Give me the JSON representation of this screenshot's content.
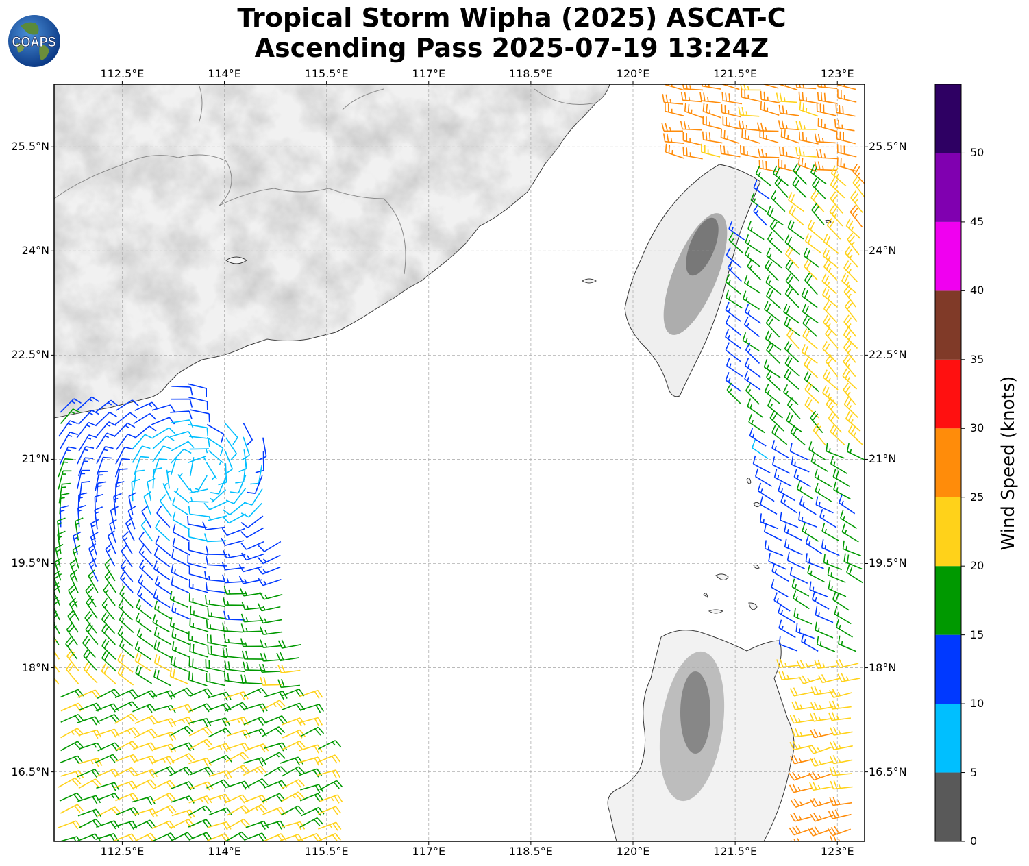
{
  "title": {
    "line1": "Tropical Storm Wipha (2025) ASCAT-C",
    "line2": "Ascending Pass 2025-07-19 13:24Z"
  },
  "logo": {
    "text": "COAPS",
    "icon": "coaps-globe-logo"
  },
  "map": {
    "lon_range": [
      111.5,
      123.4
    ],
    "lat_range": [
      15.5,
      26.4
    ],
    "lon_ticks": [
      {
        "value": 112.5,
        "label": "112.5°E"
      },
      {
        "value": 114.0,
        "label": "114°E"
      },
      {
        "value": 115.5,
        "label": "115.5°E"
      },
      {
        "value": 117.0,
        "label": "117°E"
      },
      {
        "value": 118.5,
        "label": "118.5°E"
      },
      {
        "value": 120.0,
        "label": "120°E"
      },
      {
        "value": 121.5,
        "label": "121.5°E"
      },
      {
        "value": 123.0,
        "label": "123°E"
      }
    ],
    "lat_ticks": [
      {
        "value": 25.5,
        "label": "25.5°N"
      },
      {
        "value": 24.0,
        "label": "24°N"
      },
      {
        "value": 22.5,
        "label": "22.5°N"
      },
      {
        "value": 21.0,
        "label": "21°N"
      },
      {
        "value": 19.5,
        "label": "19.5°N"
      },
      {
        "value": 18.0,
        "label": "18°N"
      },
      {
        "value": 16.5,
        "label": "16.5°N"
      }
    ],
    "gridlines": true,
    "wind_swaths": [
      {
        "name": "west",
        "lon_min": 111.5,
        "lon_max": 115.9,
        "lat_min": 15.5,
        "lat_max": 22.4
      },
      {
        "name": "east",
        "lon_min": 120.8,
        "lon_max": 123.4,
        "lat_min": 15.5,
        "lat_max": 26.4
      }
    ]
  },
  "colorbar": {
    "title": "Wind Speed (knots)",
    "bins": [
      {
        "min": 0,
        "max": 5,
        "color": "#595959"
      },
      {
        "min": 5,
        "max": 10,
        "color": "#00bfff"
      },
      {
        "min": 10,
        "max": 15,
        "color": "#0039ff"
      },
      {
        "min": 15,
        "max": 20,
        "color": "#009900"
      },
      {
        "min": 20,
        "max": 25,
        "color": "#ffd21a"
      },
      {
        "min": 25,
        "max": 30,
        "color": "#ff8c0a"
      },
      {
        "min": 30,
        "max": 35,
        "color": "#ff1010"
      },
      {
        "min": 35,
        "max": 40,
        "color": "#803a28"
      },
      {
        "min": 40,
        "max": 45,
        "color": "#f000f0"
      },
      {
        "min": 45,
        "max": 50,
        "color": "#8000b0"
      },
      {
        "min": 50,
        "max": 55,
        "color": "#2e0063"
      }
    ],
    "tick_labels": [
      "0",
      "5",
      "10",
      "15",
      "20",
      "25",
      "30",
      "35",
      "40",
      "45",
      "50"
    ]
  }
}
